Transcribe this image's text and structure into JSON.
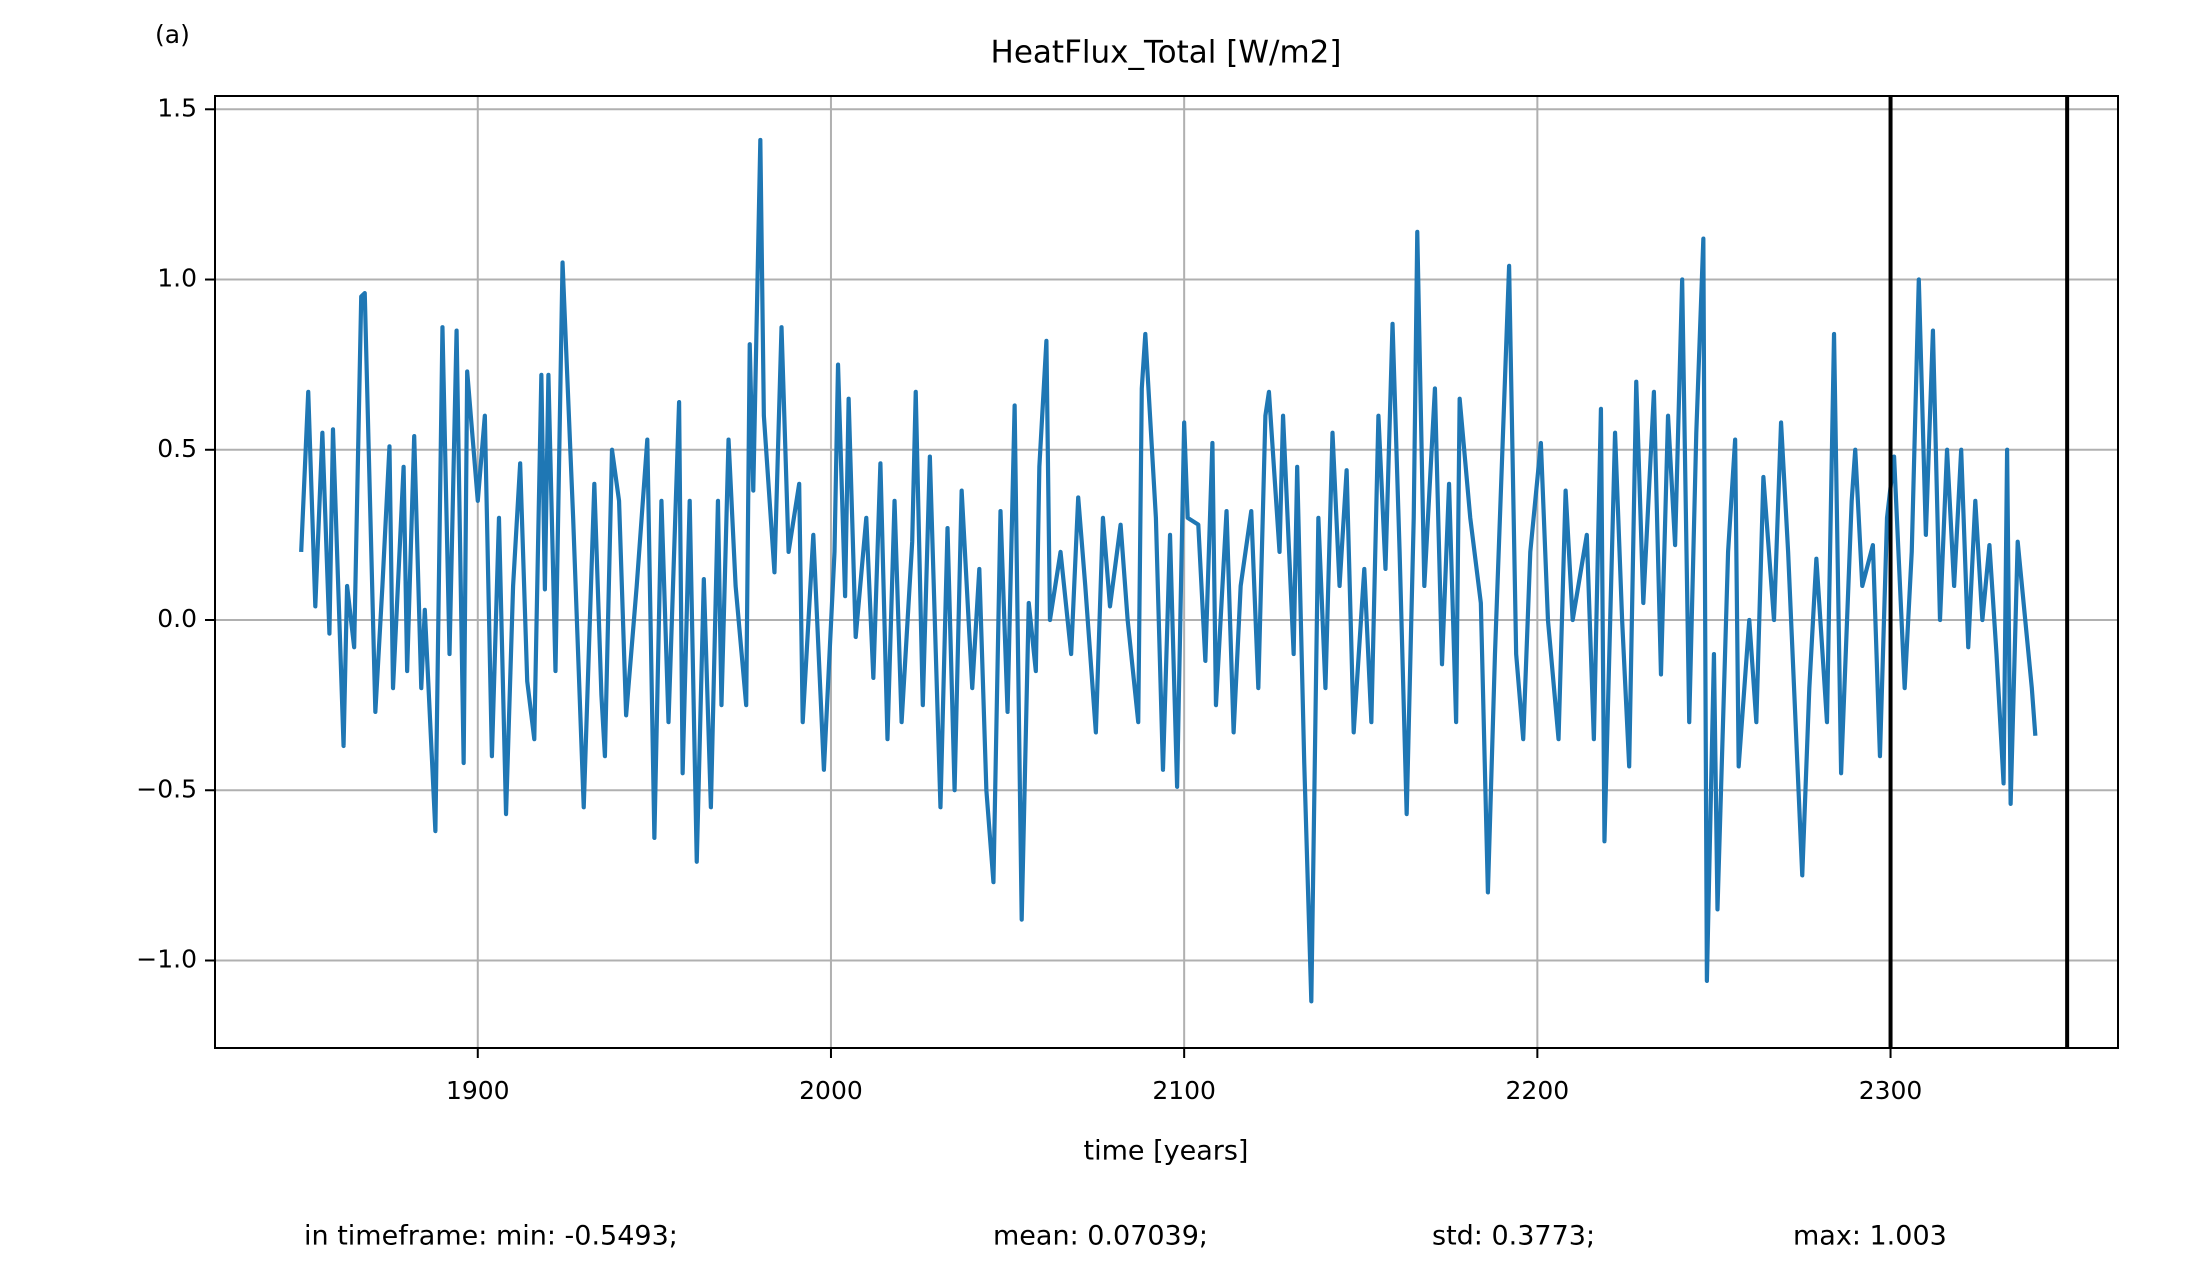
{
  "chart_data": {
    "type": "line",
    "panel_label": "(a)",
    "title": "HeatFlux_Total [W/m2]",
    "xlabel": "time [years]",
    "color": "#1f77b4",
    "grid": true,
    "xlim": [
      1825.6,
      2364.4
    ],
    "ylim": [
      -1.257,
      1.539
    ],
    "xticks": [
      1900,
      2000,
      2100,
      2200,
      2300
    ],
    "yticks": [
      {
        "value": -1,
        "label": "−1.0"
      },
      {
        "value": -0.5,
        "label": "−0.5"
      },
      {
        "value": 0,
        "label": "0.0"
      },
      0.5,
      {
        "value": 1,
        "label": "1.0"
      },
      1.5
    ],
    "vlines": [
      2300,
      2350
    ],
    "stats": [
      "in timeframe: min: -0.5493;",
      "mean: 0.07039;",
      "std: 0.3773;",
      "max: 1.003"
    ],
    "x": [
      1850,
      1852,
      1854,
      1856,
      1858,
      1859,
      1862,
      1863,
      1865,
      1867,
      1868,
      1871,
      1873,
      1875,
      1876,
      1879,
      1880,
      1882,
      1884,
      1885,
      1888,
      1890,
      1892,
      1894,
      1896,
      1897,
      1900,
      1902,
      1904,
      1906,
      1908,
      1910,
      1912,
      1914,
      1916,
      1918,
      1919,
      1920,
      1922,
      1924,
      1927,
      1930,
      1933,
      1935,
      1936,
      1938,
      1940,
      1942,
      1945,
      1948,
      1950,
      1952,
      1954,
      1957,
      1958,
      1960,
      1962,
      1964,
      1966,
      1968,
      1969,
      1971,
      1973,
      1976,
      1977,
      1978,
      1980,
      1981,
      1984,
      1986,
      1988,
      1991,
      1992,
      1995,
      1998,
      2001,
      2002,
      2004,
      2005,
      2007,
      2010,
      2012,
      2014,
      2016,
      2018,
      2020,
      2023,
      2024,
      2026,
      2028,
      2031,
      2033,
      2035,
      2037,
      2040,
      2042,
      2044,
      2046,
      2048,
      2050,
      2052,
      2054,
      2056,
      2058,
      2059,
      2061,
      2062,
      2065,
      2068,
      2070,
      2072,
      2075,
      2077,
      2079,
      2082,
      2084,
      2087,
      2088,
      2089,
      2092,
      2094,
      2096,
      2098,
      2100,
      2101,
      2104,
      2106,
      2108,
      2109,
      2112,
      2114,
      2116,
      2119,
      2121,
      2123,
      2124,
      2127,
      2128,
      2131,
      2132,
      2134,
      2136,
      2138,
      2140,
      2142,
      2144,
      2146,
      2148,
      2151,
      2153,
      2155,
      2157,
      2159,
      2161,
      2163,
      2165,
      2166,
      2168,
      2171,
      2173,
      2175,
      2177,
      2178,
      2181,
      2184,
      2186,
      2188,
      2192,
      2194,
      2196,
      2198,
      2201,
      2203,
      2206,
      2208,
      2210,
      2214,
      2216,
      2218,
      2219,
      2222,
      2224,
      2226,
      2228,
      2230,
      2233,
      2235,
      2237,
      2239,
      2241,
      2243,
      2245,
      2247,
      2248,
      2250,
      2251,
      2254,
      2256,
      2257,
      2260,
      2262,
      2264,
      2267,
      2269,
      2271,
      2275,
      2277,
      2279,
      2282,
      2284,
      2286,
      2289,
      2290,
      2292,
      2295,
      2297,
      2299,
      2301,
      2304,
      2306,
      2308,
      2310,
      2312,
      2314,
      2316,
      2318,
      2320,
      2322,
      2324,
      2326,
      2328,
      2330,
      2332,
      2333,
      2334,
      2336,
      2340,
      2341
    ],
    "values": [
      0.2,
      0.67,
      0.04,
      0.55,
      -0.04,
      0.56,
      -0.37,
      0.1,
      -0.08,
      0.95,
      0.96,
      -0.27,
      0.1,
      0.51,
      -0.2,
      0.45,
      -0.15,
      0.54,
      -0.2,
      0.03,
      -0.62,
      0.86,
      -0.1,
      0.85,
      -0.42,
      0.73,
      0.35,
      0.6,
      -0.4,
      0.3,
      -0.57,
      0.1,
      0.46,
      -0.18,
      -0.35,
      0.72,
      0.09,
      0.72,
      -0.15,
      1.05,
      0.3,
      -0.55,
      0.4,
      -0.22,
      -0.4,
      0.5,
      0.35,
      -0.28,
      0.1,
      0.53,
      -0.64,
      0.35,
      -0.3,
      0.64,
      -0.45,
      0.35,
      -0.71,
      0.12,
      -0.55,
      0.35,
      -0.25,
      0.53,
      0.1,
      -0.25,
      0.81,
      0.38,
      1.41,
      0.6,
      0.14,
      0.86,
      0.2,
      0.4,
      -0.3,
      0.25,
      -0.44,
      0.2,
      0.75,
      0.07,
      0.65,
      -0.05,
      0.3,
      -0.17,
      0.46,
      -0.35,
      0.35,
      -0.3,
      0.23,
      0.67,
      -0.25,
      0.48,
      -0.55,
      0.27,
      -0.5,
      0.38,
      -0.2,
      0.15,
      -0.5,
      -0.77,
      0.32,
      -0.27,
      0.63,
      -0.88,
      0.05,
      -0.15,
      0.45,
      0.82,
      0.0,
      0.2,
      -0.1,
      0.36,
      0.1,
      -0.33,
      0.3,
      0.04,
      0.28,
      0.0,
      -0.3,
      0.68,
      0.84,
      0.3,
      -0.44,
      0.25,
      -0.49,
      0.58,
      0.3,
      0.28,
      -0.12,
      0.52,
      -0.25,
      0.32,
      -0.33,
      0.1,
      0.32,
      -0.2,
      0.6,
      0.67,
      0.2,
      0.6,
      -0.1,
      0.45,
      -0.42,
      -1.12,
      0.3,
      -0.2,
      0.55,
      0.1,
      0.44,
      -0.33,
      0.15,
      -0.3,
      0.6,
      0.15,
      0.87,
      0.2,
      -0.57,
      0.3,
      1.14,
      0.1,
      0.68,
      -0.13,
      0.4,
      -0.3,
      0.65,
      0.3,
      0.05,
      -0.8,
      -0.1,
      1.04,
      -0.1,
      -0.35,
      0.2,
      0.52,
      0.0,
      -0.35,
      0.38,
      0.0,
      0.25,
      -0.35,
      0.62,
      -0.65,
      0.55,
      0.0,
      -0.43,
      0.7,
      0.05,
      0.67,
      -0.16,
      0.6,
      0.22,
      1.0,
      -0.3,
      0.55,
      1.12,
      -1.06,
      -0.1,
      -0.85,
      0.2,
      0.53,
      -0.43,
      0.0,
      -0.3,
      0.42,
      0.0,
      0.58,
      0.2,
      -0.75,
      -0.2,
      0.18,
      -0.3,
      0.84,
      -0.45,
      0.35,
      0.5,
      0.1,
      0.22,
      -0.4,
      0.3,
      0.48,
      -0.2,
      0.2,
      1.0,
      0.25,
      0.85,
      0.0,
      0.5,
      0.1,
      0.5,
      -0.08,
      0.35,
      0.0,
      0.22,
      -0.1,
      -0.48,
      0.5,
      -0.54,
      0.23,
      -0.2,
      -0.34
    ]
  }
}
